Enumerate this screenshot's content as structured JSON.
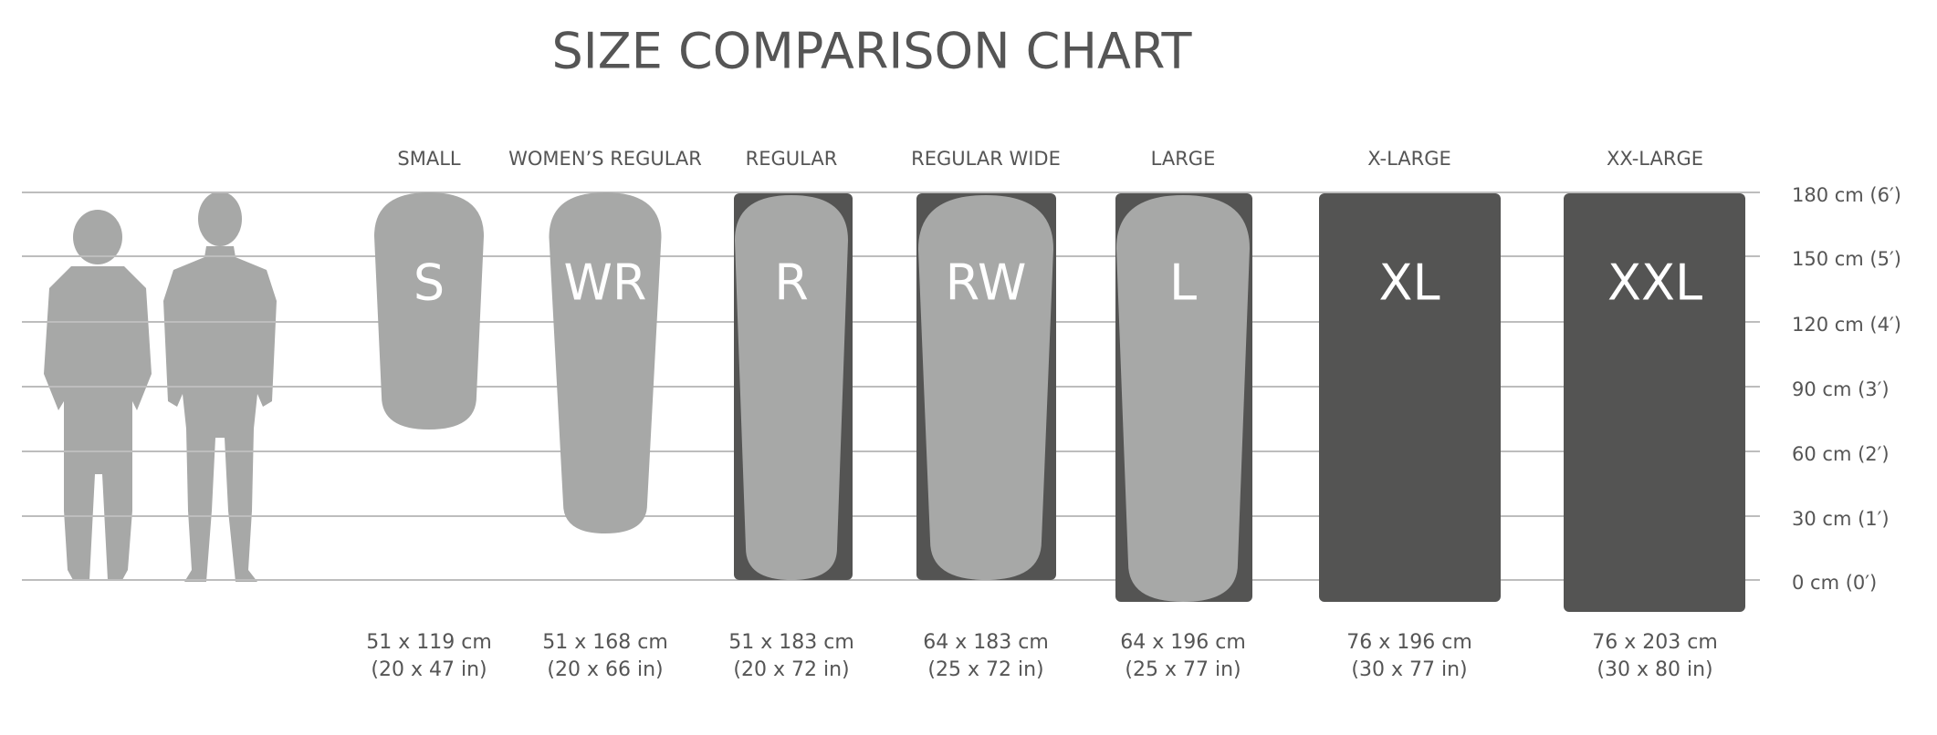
{
  "title": "SIZE COMPARISON CHART",
  "scale": [
    "180 cm (6′)",
    "150 cm (5′)",
    "120 cm (4′)",
    "90 cm (3′)",
    "60 cm (2′)",
    "30 cm (1′)",
    "0 cm (0′)"
  ],
  "sizes": [
    {
      "name": "SMALL",
      "abbr": "S",
      "metric": "51 x 119 cm",
      "imperial": "(20 x 47 in)"
    },
    {
      "name": "WOMEN’S REGULAR",
      "abbr": "WR",
      "metric": "51 x 168 cm",
      "imperial": "(20 x 66 in)"
    },
    {
      "name": "REGULAR",
      "abbr": "R",
      "metric": "51 x 183 cm",
      "imperial": "(20 x 72 in)"
    },
    {
      "name": "REGULAR WIDE",
      "abbr": "RW",
      "metric": "64 x 183 cm",
      "imperial": "(25 x 72 in)"
    },
    {
      "name": "LARGE",
      "abbr": "L",
      "metric": "64 x 196 cm",
      "imperial": "(25 x 77 in)"
    },
    {
      "name": "X-LARGE",
      "abbr": "XL",
      "metric": "76 x 196 cm",
      "imperial": "(30 x 77 in)"
    },
    {
      "name": "XX-LARGE",
      "abbr": "XXL",
      "metric": "76 x 203 cm",
      "imperial": "(30 x 80 in)"
    }
  ]
}
